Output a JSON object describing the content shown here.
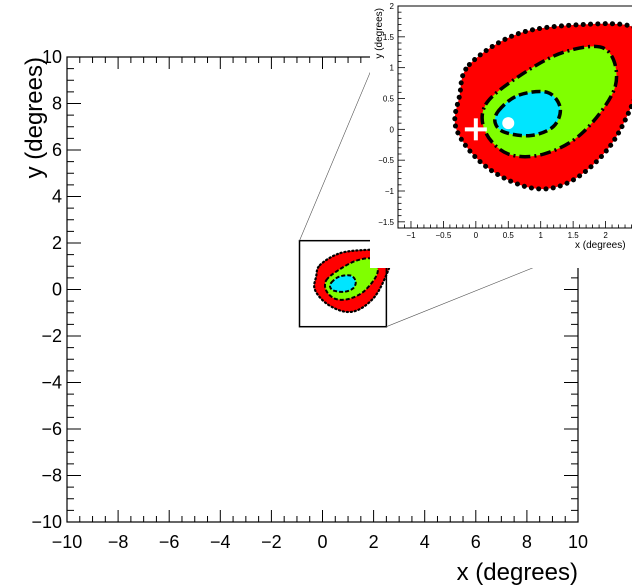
{
  "chart_data": [
    {
      "type": "contour",
      "panel": "main",
      "xlabel": "x (degrees)",
      "ylabel": "y (degrees)",
      "xlim": [
        -10,
        10
      ],
      "ylim": [
        -10,
        10
      ],
      "xticks": [
        "−10",
        "−8",
        "−6",
        "−4",
        "−2",
        "0",
        "2",
        "4",
        "6",
        "8",
        "10"
      ],
      "yticks": [
        "−10",
        "−8",
        "−6",
        "−4",
        "−2",
        "0",
        "2",
        "4",
        "6",
        "8",
        "10"
      ],
      "zoom_box": {
        "x": [
          -0.9,
          2.5
        ],
        "y": [
          -1.6,
          2.1
        ]
      },
      "regions": [
        {
          "color": "#ff0000",
          "boundary": "dotted black"
        },
        {
          "color": "#80ff00",
          "boundary": "dashed black"
        },
        {
          "color": "#00e5ff",
          "boundary": "dashed black"
        }
      ],
      "markers": [],
      "grid": false
    },
    {
      "type": "contour",
      "panel": "inset",
      "xlabel": "x (degrees)",
      "ylabel": "y (degrees)",
      "xlim": [
        -1.2,
        2.5
      ],
      "ylim": [
        -1.6,
        2
      ],
      "xticks": [
        "−1",
        "−0.5",
        "0",
        "0.5",
        "1",
        "1.5",
        "2",
        "2."
      ],
      "yticks": [
        "−1.5",
        "−1",
        "−0.5",
        "0",
        "0.5",
        "1",
        "1.5",
        "2"
      ],
      "regions": [
        {
          "color": "#ff0000",
          "boundary": "dotted black"
        },
        {
          "color": "#80ff00",
          "boundary": "dashed black"
        },
        {
          "color": "#00e5ff",
          "boundary": "dashed black"
        }
      ],
      "markers": [
        {
          "shape": "cross",
          "color": "#ffffff",
          "x": 0.0,
          "y": 0.0
        },
        {
          "shape": "dot",
          "color": "#ffffff",
          "x": 0.5,
          "y": 0.1
        }
      ],
      "grid": false
    }
  ]
}
